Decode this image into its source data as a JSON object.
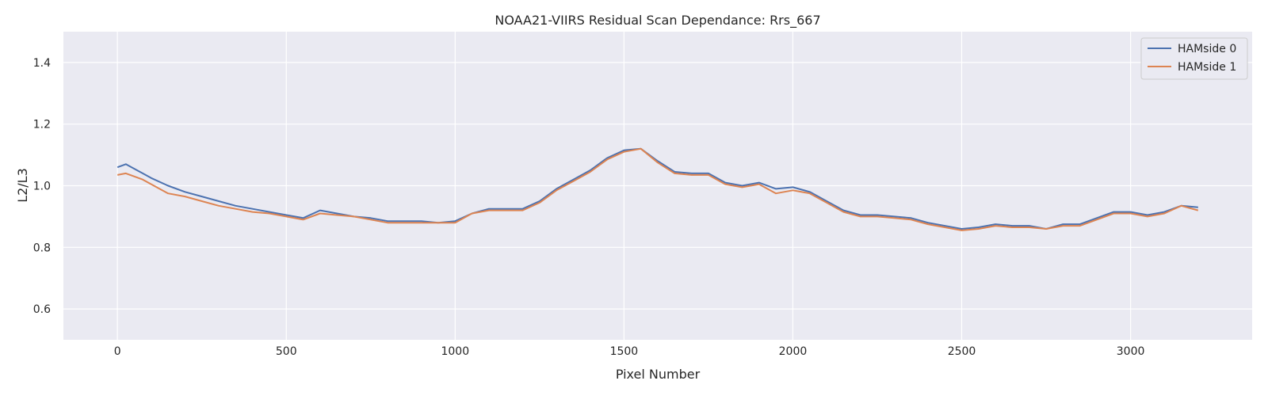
{
  "chart_data": {
    "type": "line",
    "title": "NOAA21-VIIRS Residual Scan Dependance: Rrs_667",
    "xlabel": "Pixel Number",
    "ylabel": "L2/L3",
    "xlim": [
      -160,
      3360
    ],
    "ylim": [
      0.5,
      1.5
    ],
    "xticks": [
      0,
      500,
      1000,
      1500,
      2000,
      2500,
      3000
    ],
    "yticks": [
      0.6,
      0.8,
      1.0,
      1.2,
      1.4
    ],
    "xtick_labels": [
      "0",
      "500",
      "1000",
      "1500",
      "2000",
      "2500",
      "3000"
    ],
    "ytick_labels": [
      "0.6",
      "0.8",
      "1.0",
      "1.2",
      "1.4"
    ],
    "grid": true,
    "legend_position": "top-right",
    "series": [
      {
        "name": "HAMside 0",
        "color": "#4c72b0",
        "x": [
          0,
          25,
          50,
          75,
          100,
          150,
          200,
          250,
          300,
          350,
          400,
          450,
          500,
          550,
          600,
          650,
          700,
          750,
          800,
          850,
          900,
          950,
          1000,
          1050,
          1100,
          1150,
          1200,
          1250,
          1300,
          1350,
          1400,
          1450,
          1500,
          1550,
          1600,
          1650,
          1700,
          1750,
          1800,
          1850,
          1900,
          1950,
          2000,
          2050,
          2100,
          2150,
          2200,
          2250,
          2300,
          2350,
          2400,
          2450,
          2500,
          2550,
          2600,
          2650,
          2700,
          2750,
          2800,
          2850,
          2900,
          2950,
          3000,
          3050,
          3100,
          3150,
          3200
        ],
        "values": [
          1.06,
          1.07,
          1.055,
          1.04,
          1.025,
          1.0,
          0.98,
          0.965,
          0.95,
          0.935,
          0.925,
          0.915,
          0.905,
          0.895,
          0.92,
          0.91,
          0.9,
          0.895,
          0.885,
          0.885,
          0.885,
          0.88,
          0.885,
          0.91,
          0.925,
          0.925,
          0.925,
          0.95,
          0.99,
          1.02,
          1.05,
          1.09,
          1.115,
          1.12,
          1.08,
          1.045,
          1.04,
          1.04,
          1.01,
          1.0,
          1.01,
          0.99,
          0.995,
          0.98,
          0.95,
          0.92,
          0.905,
          0.905,
          0.9,
          0.895,
          0.88,
          0.87,
          0.86,
          0.865,
          0.875,
          0.87,
          0.87,
          0.86,
          0.875,
          0.875,
          0.895,
          0.915,
          0.915,
          0.905,
          0.915,
          0.935,
          0.93
        ]
      },
      {
        "name": "HAMside 1",
        "color": "#dd8452",
        "x": [
          0,
          25,
          50,
          75,
          100,
          150,
          200,
          250,
          300,
          350,
          400,
          450,
          500,
          550,
          600,
          650,
          700,
          750,
          800,
          850,
          900,
          950,
          1000,
          1050,
          1100,
          1150,
          1200,
          1250,
          1300,
          1350,
          1400,
          1450,
          1500,
          1550,
          1600,
          1650,
          1700,
          1750,
          1800,
          1850,
          1900,
          1950,
          2000,
          2050,
          2100,
          2150,
          2200,
          2250,
          2300,
          2350,
          2400,
          2450,
          2500,
          2550,
          2600,
          2650,
          2700,
          2750,
          2800,
          2850,
          2900,
          2950,
          3000,
          3050,
          3100,
          3150,
          3200
        ],
        "values": [
          1.035,
          1.04,
          1.03,
          1.02,
          1.005,
          0.975,
          0.965,
          0.95,
          0.935,
          0.925,
          0.915,
          0.91,
          0.9,
          0.89,
          0.91,
          0.905,
          0.9,
          0.89,
          0.88,
          0.88,
          0.88,
          0.88,
          0.88,
          0.91,
          0.92,
          0.92,
          0.92,
          0.945,
          0.985,
          1.015,
          1.045,
          1.085,
          1.11,
          1.12,
          1.075,
          1.04,
          1.035,
          1.035,
          1.005,
          0.995,
          1.005,
          0.975,
          0.985,
          0.975,
          0.945,
          0.915,
          0.9,
          0.9,
          0.895,
          0.89,
          0.875,
          0.865,
          0.855,
          0.86,
          0.87,
          0.865,
          0.865,
          0.86,
          0.87,
          0.87,
          0.89,
          0.91,
          0.91,
          0.9,
          0.91,
          0.935,
          0.92
        ]
      }
    ]
  }
}
